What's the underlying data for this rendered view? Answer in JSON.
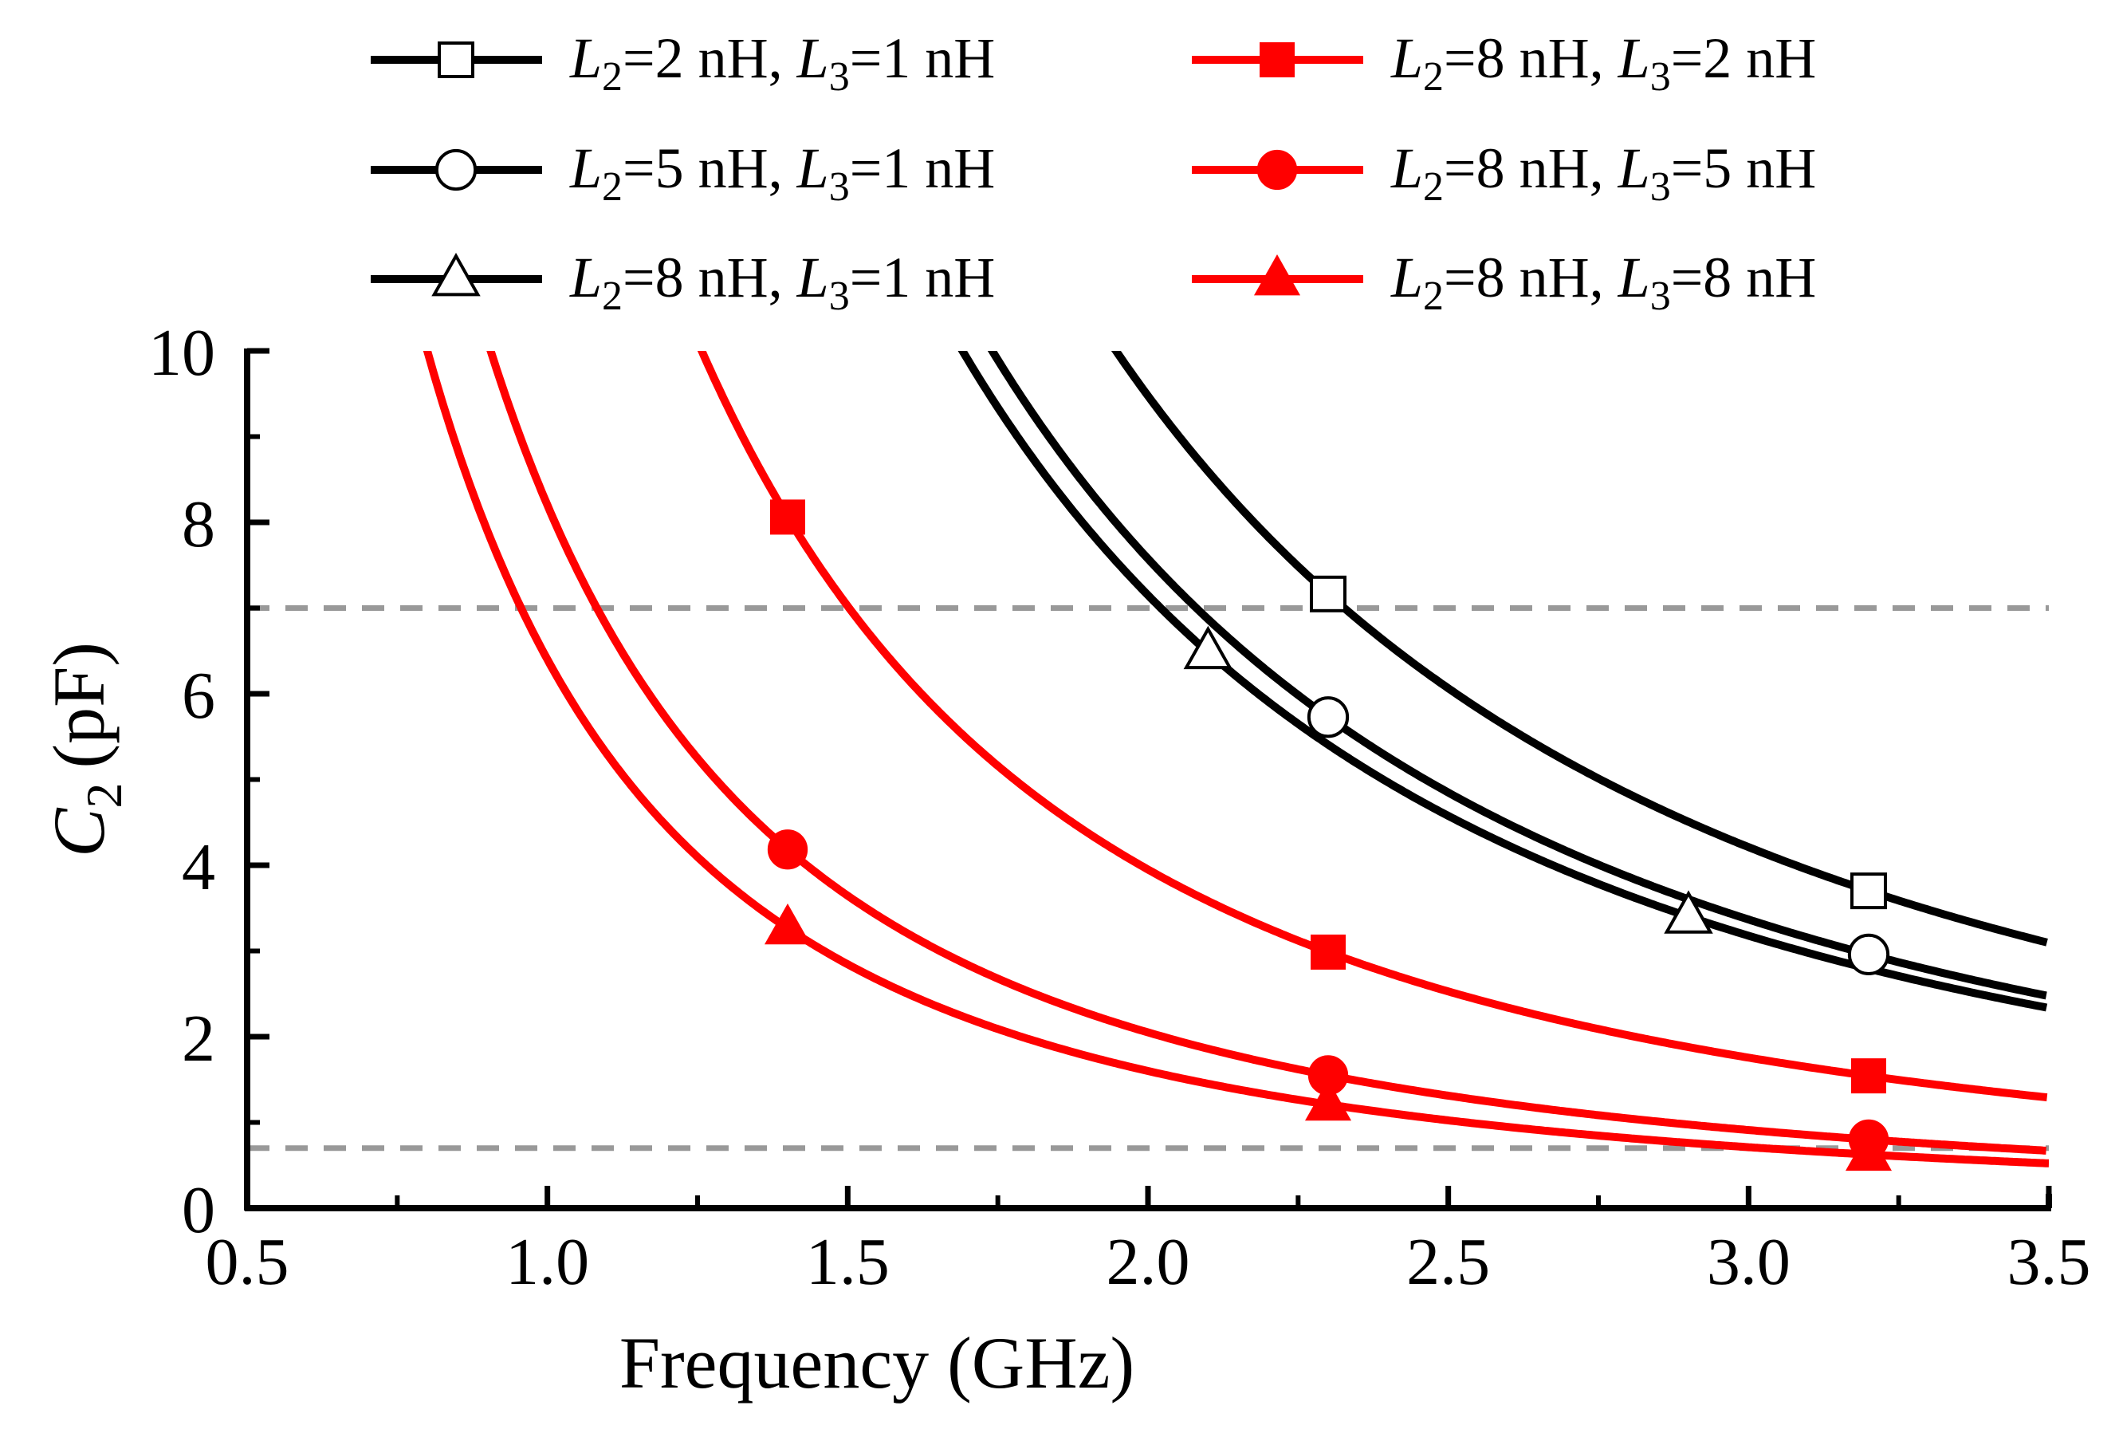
{
  "chart_data": {
    "type": "line",
    "xlabel": "Frequency (GHz)",
    "ylabel": {
      "symbol": "C",
      "subscript": "2",
      "unit": "(pF)"
    },
    "xlim": [
      0.5,
      3.5
    ],
    "ylim": [
      0,
      10
    ],
    "xticks": [
      "0.5",
      "1.0",
      "1.5",
      "2.0",
      "2.5",
      "3.0",
      "3.5"
    ],
    "yticks": [
      "0",
      "2",
      "4",
      "6",
      "8",
      "10"
    ],
    "x_tick_values": [
      0.5,
      1.0,
      1.5,
      2.0,
      2.5,
      3.0,
      3.5
    ],
    "y_tick_values": [
      0,
      2,
      4,
      6,
      8,
      10
    ],
    "reference_lines": [
      {
        "axis": "y",
        "value": 7.0,
        "style": "dashed",
        "color": "#999999"
      },
      {
        "axis": "y",
        "value": 0.7,
        "style": "dashed",
        "color": "#999999"
      }
    ],
    "series": [
      {
        "name": "L2=2 nH, L3=1 nH",
        "l2": "2",
        "l3": "1",
        "color": "#000000",
        "marker": "square",
        "filled": false,
        "k": 37.9,
        "x_end": 3.5,
        "marker_x": [
          2.3,
          3.2
        ]
      },
      {
        "name": "L2=5 nH, L3=1 nH",
        "l2": "5",
        "l3": "1",
        "color": "#000000",
        "marker": "circle",
        "filled": false,
        "k": 30.3,
        "x_end": 3.5,
        "marker_x": [
          2.3,
          3.2
        ]
      },
      {
        "name": "L2=8 nH, L3=1 nH",
        "l2": "8",
        "l3": "1",
        "color": "#000000",
        "marker": "triangle",
        "filled": false,
        "k": 28.6,
        "x_end": 3.5,
        "marker_x": [
          2.1,
          2.9
        ]
      },
      {
        "name": "L2=8 nH, L3=2 nH",
        "l2": "8",
        "l3": "2",
        "color": "#ff0000",
        "marker": "square",
        "filled": true,
        "k": 15.8,
        "x_end": 3.5,
        "marker_x": [
          1.4,
          2.3,
          3.2
        ]
      },
      {
        "name": "L2=8 nH, L3=5 nH",
        "l2": "8",
        "l3": "5",
        "color": "#ff0000",
        "marker": "circle",
        "filled": true,
        "k": 8.2,
        "x_end": 3.5,
        "marker_x": [
          1.4,
          2.3,
          3.2
        ]
      },
      {
        "name": "L2=8 nH, L3=8 nH",
        "l2": "8",
        "l3": "8",
        "color": "#ff0000",
        "marker": "triangle",
        "filled": true,
        "k": 6.4,
        "x_end": 3.5,
        "marker_x": [
          1.4,
          2.3,
          3.2
        ]
      }
    ],
    "legend": {
      "placement": "top",
      "columns": 2,
      "entry_prefix_l2": "L",
      "entry_prefix_l3": "L",
      "sub2": "2",
      "sub3": "3",
      "equals": "=",
      "unit": " nH",
      "separator": ", "
    }
  }
}
